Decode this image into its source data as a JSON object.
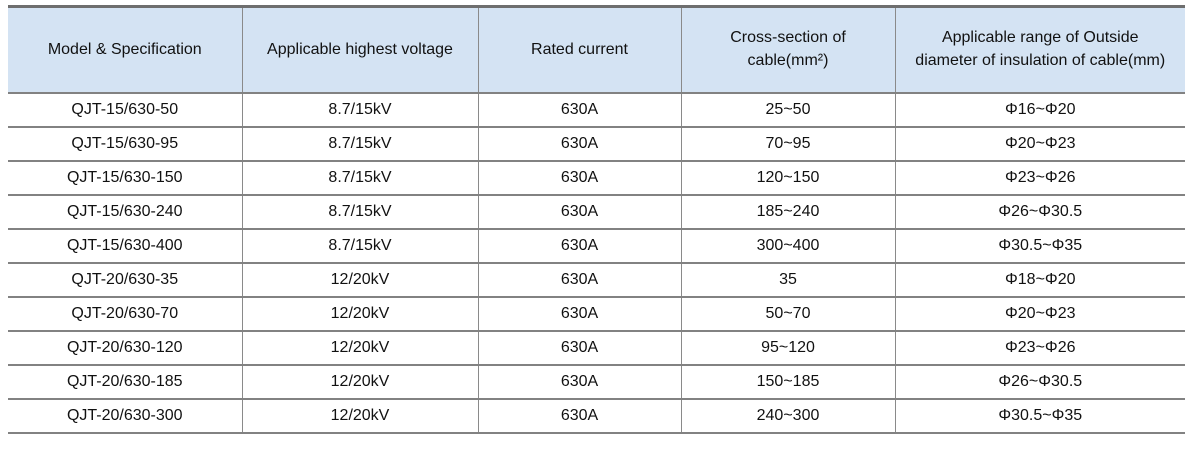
{
  "table": {
    "columns": [
      {
        "label": "Model & Specification"
      },
      {
        "label": "Applicable highest voltage"
      },
      {
        "label": "Rated current"
      },
      {
        "label": "Cross-section of\ncable(mm²)"
      },
      {
        "label": "Applicable range of Outside\ndiameter of insulation of cable(mm)"
      }
    ],
    "rows": [
      [
        "QJT-15/630-50",
        "8.7/15kV",
        "630A",
        "25~50",
        "Φ16~Φ20"
      ],
      [
        "QJT-15/630-95",
        "8.7/15kV",
        "630A",
        "70~95",
        "Φ20~Φ23"
      ],
      [
        "QJT-15/630-150",
        "8.7/15kV",
        "630A",
        "120~150",
        "Φ23~Φ26"
      ],
      [
        "QJT-15/630-240",
        "8.7/15kV",
        "630A",
        "185~240",
        "Φ26~Φ30.5"
      ],
      [
        "QJT-15/630-400",
        "8.7/15kV",
        "630A",
        "300~400",
        "Φ30.5~Φ35"
      ],
      [
        "QJT-20/630-35",
        "12/20kV",
        "630A",
        "35",
        "Φ18~Φ20"
      ],
      [
        "QJT-20/630-70",
        "12/20kV",
        "630A",
        "50~70",
        "Φ20~Φ23"
      ],
      [
        "QJT-20/630-120",
        "12/20kV",
        "630A",
        "95~120",
        "Φ23~Φ26"
      ],
      [
        "QJT-20/630-185",
        "12/20kV",
        "630A",
        "150~185",
        "Φ26~Φ30.5"
      ],
      [
        "QJT-20/630-300",
        "12/20kV",
        "630A",
        "240~300",
        "Φ30.5~Φ35"
      ]
    ],
    "style": {
      "header_bg": "#d4e3f3",
      "border_gray": "#828282",
      "top_border": "#6e6e6e"
    }
  }
}
